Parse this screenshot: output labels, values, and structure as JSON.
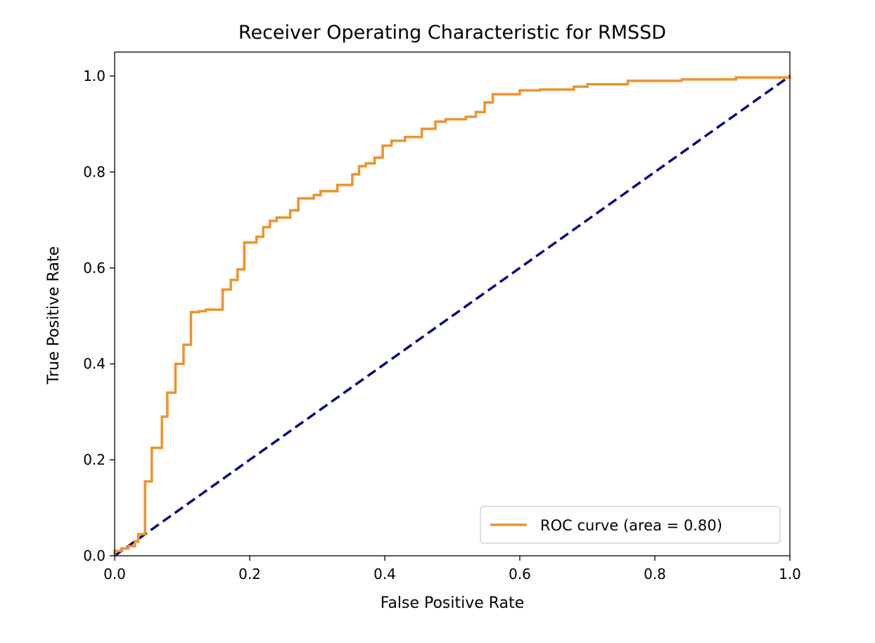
{
  "chart_data": {
    "type": "line",
    "title": "Receiver Operating Characteristic for RMSSD",
    "xlabel": "False Positive Rate",
    "ylabel": "True Positive Rate",
    "xlim": [
      0.0,
      1.0
    ],
    "ylim": [
      0.0,
      1.05
    ],
    "xticks": [
      "0.0",
      "0.2",
      "0.4",
      "0.6",
      "0.8",
      "1.0"
    ],
    "yticks": [
      "0.0",
      "0.2",
      "0.4",
      "0.6",
      "0.8",
      "1.0"
    ],
    "grid": false,
    "legend_position": "lower-right",
    "series": [
      {
        "name": "ROC curve (area = 0.80)",
        "color": "#F0922B",
        "style": "solid",
        "points": [
          [
            0.0,
            0.0
          ],
          [
            0.0,
            0.01
          ],
          [
            0.01,
            0.01
          ],
          [
            0.01,
            0.015
          ],
          [
            0.02,
            0.015
          ],
          [
            0.02,
            0.02
          ],
          [
            0.03,
            0.02
          ],
          [
            0.03,
            0.03
          ],
          [
            0.035,
            0.03
          ],
          [
            0.035,
            0.045
          ],
          [
            0.045,
            0.045
          ],
          [
            0.045,
            0.155
          ],
          [
            0.055,
            0.155
          ],
          [
            0.055,
            0.225
          ],
          [
            0.07,
            0.225
          ],
          [
            0.07,
            0.29
          ],
          [
            0.078,
            0.29
          ],
          [
            0.078,
            0.34
          ],
          [
            0.09,
            0.34
          ],
          [
            0.09,
            0.4
          ],
          [
            0.102,
            0.4
          ],
          [
            0.102,
            0.44
          ],
          [
            0.113,
            0.44
          ],
          [
            0.113,
            0.508
          ],
          [
            0.125,
            0.508
          ],
          [
            0.125,
            0.51
          ],
          [
            0.135,
            0.51
          ],
          [
            0.135,
            0.513
          ],
          [
            0.16,
            0.513
          ],
          [
            0.16,
            0.555
          ],
          [
            0.172,
            0.555
          ],
          [
            0.172,
            0.575
          ],
          [
            0.182,
            0.575
          ],
          [
            0.182,
            0.597
          ],
          [
            0.192,
            0.597
          ],
          [
            0.192,
            0.653
          ],
          [
            0.21,
            0.653
          ],
          [
            0.21,
            0.665
          ],
          [
            0.22,
            0.665
          ],
          [
            0.22,
            0.685
          ],
          [
            0.23,
            0.685
          ],
          [
            0.23,
            0.698
          ],
          [
            0.24,
            0.698
          ],
          [
            0.24,
            0.705
          ],
          [
            0.26,
            0.705
          ],
          [
            0.26,
            0.72
          ],
          [
            0.272,
            0.72
          ],
          [
            0.272,
            0.745
          ],
          [
            0.295,
            0.745
          ],
          [
            0.295,
            0.752
          ],
          [
            0.305,
            0.752
          ],
          [
            0.305,
            0.76
          ],
          [
            0.33,
            0.76
          ],
          [
            0.33,
            0.773
          ],
          [
            0.352,
            0.773
          ],
          [
            0.352,
            0.795
          ],
          [
            0.362,
            0.795
          ],
          [
            0.362,
            0.812
          ],
          [
            0.372,
            0.812
          ],
          [
            0.372,
            0.818
          ],
          [
            0.385,
            0.818
          ],
          [
            0.385,
            0.83
          ],
          [
            0.397,
            0.83
          ],
          [
            0.397,
            0.855
          ],
          [
            0.41,
            0.855
          ],
          [
            0.41,
            0.865
          ],
          [
            0.43,
            0.865
          ],
          [
            0.43,
            0.873
          ],
          [
            0.455,
            0.873
          ],
          [
            0.455,
            0.89
          ],
          [
            0.475,
            0.89
          ],
          [
            0.475,
            0.905
          ],
          [
            0.49,
            0.905
          ],
          [
            0.49,
            0.91
          ],
          [
            0.52,
            0.91
          ],
          [
            0.52,
            0.915
          ],
          [
            0.535,
            0.915
          ],
          [
            0.535,
            0.925
          ],
          [
            0.548,
            0.925
          ],
          [
            0.548,
            0.945
          ],
          [
            0.56,
            0.945
          ],
          [
            0.56,
            0.962
          ],
          [
            0.6,
            0.962
          ],
          [
            0.6,
            0.97
          ],
          [
            0.63,
            0.97
          ],
          [
            0.63,
            0.972
          ],
          [
            0.68,
            0.972
          ],
          [
            0.68,
            0.978
          ],
          [
            0.7,
            0.978
          ],
          [
            0.7,
            0.983
          ],
          [
            0.76,
            0.983
          ],
          [
            0.76,
            0.99
          ],
          [
            0.84,
            0.99
          ],
          [
            0.84,
            0.993
          ],
          [
            0.92,
            0.993
          ],
          [
            0.92,
            0.997
          ],
          [
            1.0,
            0.997
          ],
          [
            1.0,
            1.0
          ]
        ]
      },
      {
        "name": "",
        "color": "#0A0A80",
        "style": "dashed",
        "points": [
          [
            0.0,
            0.0
          ],
          [
            1.0,
            1.0
          ]
        ]
      }
    ]
  }
}
